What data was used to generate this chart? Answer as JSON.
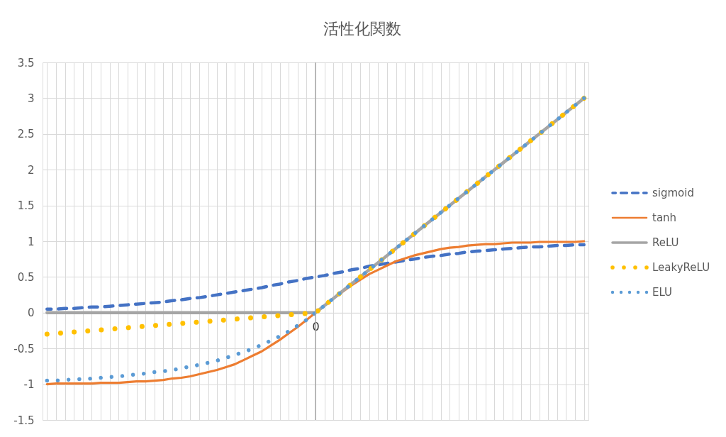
{
  "chart_data": {
    "type": "line",
    "title": "活性化関数",
    "categories": [
      null,
      null,
      null,
      null,
      null,
      null,
      null,
      null,
      null,
      null,
      null,
      null,
      null,
      null,
      null,
      null,
      null,
      null,
      null,
      null,
      null,
      null,
      null,
      null,
      null,
      null,
      null,
      null,
      null,
      null,
      "0",
      null,
      null,
      null,
      null,
      null,
      null,
      null,
      null,
      null,
      null,
      null,
      null,
      null,
      null,
      null,
      null,
      null,
      null,
      null,
      null,
      null,
      null,
      null,
      null,
      null,
      null,
      null,
      null,
      null,
      null
    ],
    "ylim": [
      -1.5,
      3.5
    ],
    "yticks": [
      -1.5,
      -1,
      -0.5,
      0,
      0.5,
      1,
      1.5,
      2,
      2.5,
      3,
      3.5
    ],
    "grid": true,
    "legend": "right",
    "ref_lines": [
      {
        "axis": "x",
        "value": "0",
        "color": "#a6a6a6"
      }
    ],
    "series": [
      {
        "name": "sigmoid",
        "color": "#4472c4",
        "line_style": "dashed",
        "values": [
          0.05,
          0.05,
          0.06,
          0.06,
          0.07,
          0.08,
          0.08,
          0.09,
          0.1,
          0.11,
          0.12,
          0.13,
          0.14,
          0.15,
          0.17,
          0.18,
          0.2,
          0.21,
          0.23,
          0.25,
          0.27,
          0.29,
          0.31,
          0.33,
          0.35,
          0.38,
          0.4,
          0.43,
          0.45,
          0.48,
          0.5,
          0.52,
          0.55,
          0.57,
          0.6,
          0.62,
          0.65,
          0.67,
          0.69,
          0.71,
          0.73,
          0.75,
          0.77,
          0.79,
          0.8,
          0.82,
          0.83,
          0.85,
          0.86,
          0.87,
          0.88,
          0.89,
          0.9,
          0.91,
          0.92,
          0.92,
          0.93,
          0.94,
          0.94,
          0.95,
          0.95
        ]
      },
      {
        "name": "tanh",
        "color": "#ed7d31",
        "line_style": "solid",
        "values": [
          -1.0,
          -0.99,
          -0.99,
          -0.99,
          -0.99,
          -0.99,
          -0.98,
          -0.98,
          -0.98,
          -0.97,
          -0.96,
          -0.96,
          -0.95,
          -0.94,
          -0.92,
          -0.91,
          -0.89,
          -0.86,
          -0.83,
          -0.8,
          -0.76,
          -0.72,
          -0.66,
          -0.6,
          -0.54,
          -0.46,
          -0.38,
          -0.29,
          -0.2,
          -0.1,
          0,
          0.1,
          0.2,
          0.29,
          0.38,
          0.46,
          0.54,
          0.6,
          0.66,
          0.72,
          0.76,
          0.8,
          0.83,
          0.86,
          0.89,
          0.91,
          0.92,
          0.94,
          0.95,
          0.96,
          0.96,
          0.97,
          0.98,
          0.98,
          0.98,
          0.99,
          0.99,
          0.99,
          0.99,
          0.99,
          1.0
        ]
      },
      {
        "name": "ReLU",
        "color": "#a5a5a5",
        "line_style": "solid",
        "values": [
          0,
          0,
          0,
          0,
          0,
          0,
          0,
          0,
          0,
          0,
          0,
          0,
          0,
          0,
          0,
          0,
          0,
          0,
          0,
          0,
          0,
          0,
          0,
          0,
          0,
          0,
          0,
          0,
          0,
          0,
          0,
          0.1,
          0.2,
          0.3,
          0.4,
          0.5,
          0.6,
          0.7,
          0.8,
          0.9,
          1.0,
          1.1,
          1.2,
          1.3,
          1.4,
          1.5,
          1.6,
          1.7,
          1.8,
          1.9,
          2.0,
          2.1,
          2.2,
          2.3,
          2.4,
          2.5,
          2.6,
          2.7,
          2.8,
          2.9,
          3.0
        ]
      },
      {
        "name": "LeakyReLU",
        "color": "#ffc000",
        "line_style": "dotted",
        "values": [
          -0.3,
          -0.29,
          -0.28,
          -0.27,
          -0.26,
          -0.25,
          -0.24,
          -0.23,
          -0.22,
          -0.21,
          -0.2,
          -0.19,
          -0.18,
          -0.17,
          -0.16,
          -0.15,
          -0.14,
          -0.13,
          -0.12,
          -0.11,
          -0.1,
          -0.09,
          -0.08,
          -0.07,
          -0.06,
          -0.05,
          -0.04,
          -0.03,
          -0.02,
          -0.01,
          0,
          0.1,
          0.2,
          0.3,
          0.4,
          0.5,
          0.6,
          0.7,
          0.8,
          0.9,
          1.0,
          1.1,
          1.2,
          1.3,
          1.4,
          1.5,
          1.6,
          1.7,
          1.8,
          1.9,
          2.0,
          2.1,
          2.2,
          2.3,
          2.4,
          2.5,
          2.6,
          2.7,
          2.8,
          2.9,
          3.0
        ]
      },
      {
        "name": "ELU",
        "color": "#5b9bd5",
        "line_style": "dotted",
        "values": [
          -0.95,
          -0.95,
          -0.94,
          -0.93,
          -0.93,
          -0.92,
          -0.91,
          -0.9,
          -0.89,
          -0.88,
          -0.86,
          -0.85,
          -0.83,
          -0.82,
          -0.8,
          -0.78,
          -0.75,
          -0.73,
          -0.7,
          -0.67,
          -0.63,
          -0.59,
          -0.55,
          -0.5,
          -0.45,
          -0.39,
          -0.33,
          -0.26,
          -0.18,
          -0.1,
          0,
          0.1,
          0.2,
          0.3,
          0.4,
          0.5,
          0.6,
          0.7,
          0.8,
          0.9,
          1.0,
          1.1,
          1.2,
          1.3,
          1.4,
          1.5,
          1.6,
          1.7,
          1.8,
          1.9,
          2.0,
          2.1,
          2.2,
          2.3,
          2.4,
          2.5,
          2.6,
          2.7,
          2.8,
          2.9,
          3.0
        ]
      }
    ]
  }
}
